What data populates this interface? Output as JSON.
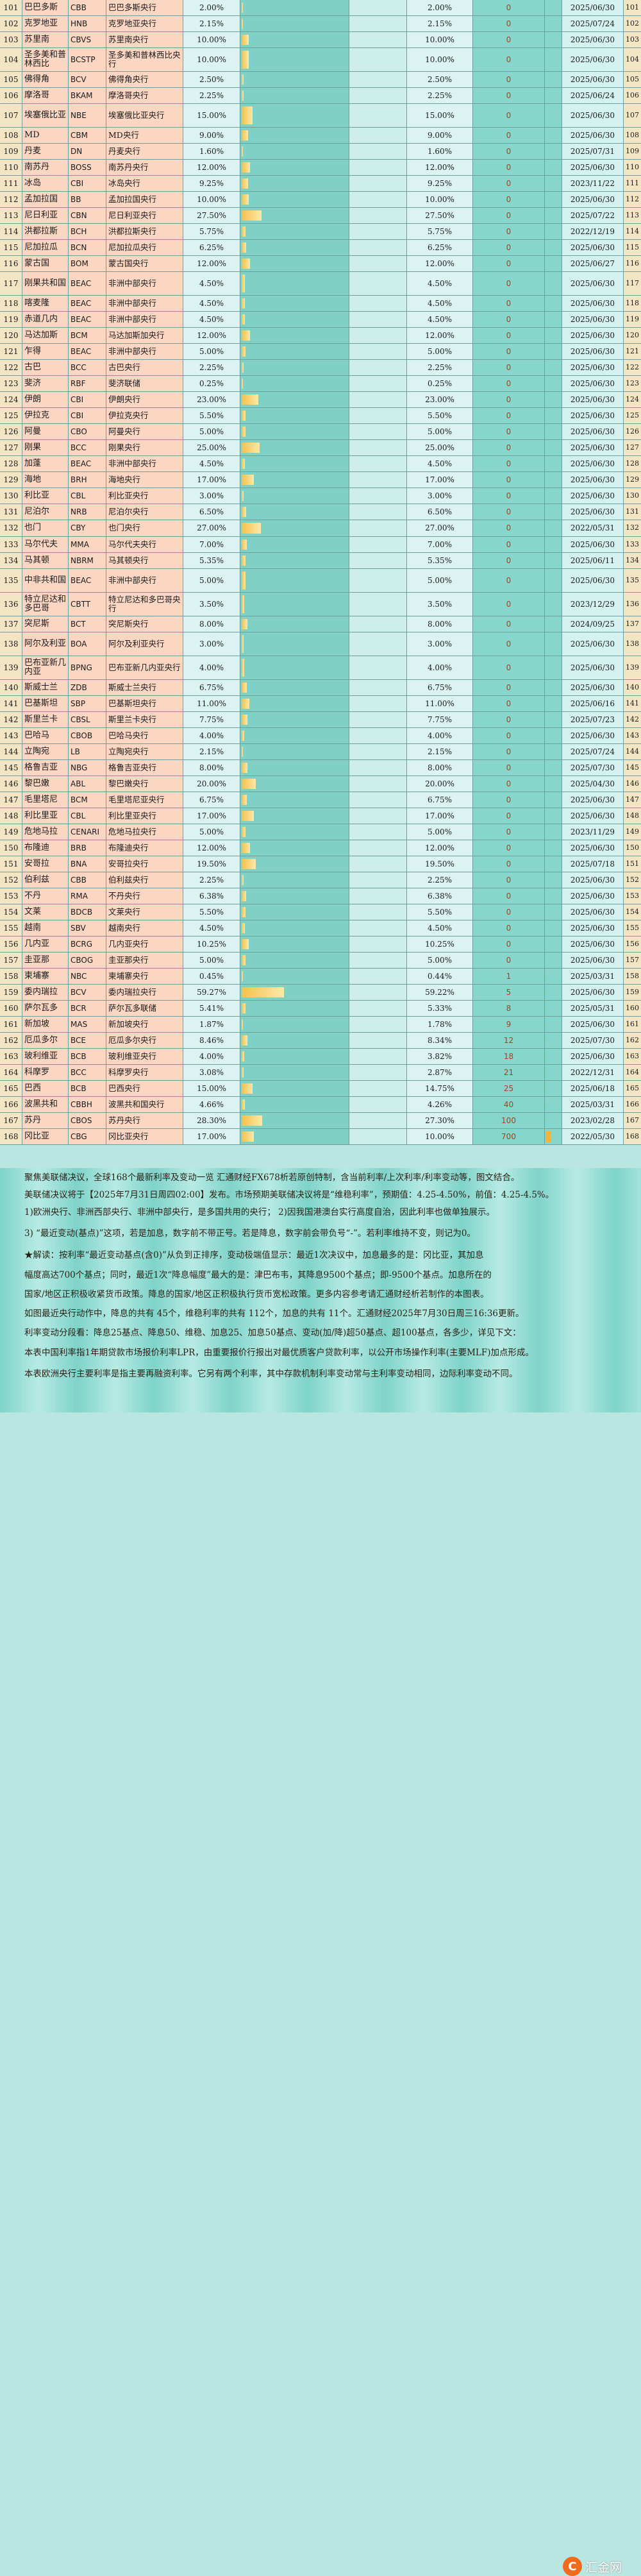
{
  "rows": [
    {
      "idx": "101",
      "country": "巴巴多斯",
      "code": "CBB",
      "bank": "巴巴多斯央行",
      "rate": "2.00%",
      "prev": "2.00%",
      "change": "0",
      "date": "2025/06/30",
      "rate_value": 2.0,
      "change_value": 0
    },
    {
      "idx": "102",
      "country": "克罗地亚",
      "code": "HNB",
      "bank": "克罗地亚央行",
      "rate": "2.15%",
      "prev": "2.15%",
      "change": "0",
      "date": "2025/07/24",
      "rate_value": 2.15,
      "change_value": 0
    },
    {
      "idx": "103",
      "country": "苏里南",
      "code": "CBVS",
      "bank": "苏里南央行",
      "rate": "10.00%",
      "prev": "10.00%",
      "change": "0",
      "date": "2025/06/30",
      "rate_value": 10.0,
      "change_value": 0
    },
    {
      "idx": "104",
      "country": "圣多美和普林西比",
      "code": "BCSTP",
      "bank": "圣多美和普林西比央行",
      "rate": "10.00%",
      "prev": "10.00%",
      "change": "0",
      "date": "2025/06/30",
      "rate_value": 10.0,
      "change_value": 0,
      "tall": true
    },
    {
      "idx": "105",
      "country": "佛得角",
      "code": "BCV",
      "bank": "佛得角央行",
      "rate": "2.50%",
      "prev": "2.50%",
      "change": "0",
      "date": "2025/06/30",
      "rate_value": 2.5,
      "change_value": 0
    },
    {
      "idx": "106",
      "country": "摩洛哥",
      "code": "BKAM",
      "bank": "摩洛哥央行",
      "rate": "2.25%",
      "prev": "2.25%",
      "change": "0",
      "date": "2025/06/24",
      "rate_value": 2.25,
      "change_value": 0
    },
    {
      "idx": "107",
      "country": "埃塞俄比亚",
      "code": "NBE",
      "bank": "埃塞俄比亚央行",
      "rate": "15.00%",
      "prev": "15.00%",
      "change": "0",
      "date": "2025/06/30",
      "rate_value": 15.0,
      "change_value": 0,
      "tall": true
    },
    {
      "idx": "108",
      "country": "MD",
      "code": "CBM",
      "bank": "MD央行",
      "rate": "9.00%",
      "prev": "9.00%",
      "change": "0",
      "date": "2025/06/30",
      "rate_value": 9.0,
      "change_value": 0
    },
    {
      "idx": "109",
      "country": "丹麦",
      "code": "DN",
      "bank": "丹麦央行",
      "rate": "1.60%",
      "prev": "1.60%",
      "change": "0",
      "date": "2025/07/31",
      "rate_value": 1.6,
      "change_value": 0
    },
    {
      "idx": "110",
      "country": "南苏丹",
      "code": "BOSS",
      "bank": "南苏丹央行",
      "rate": "12.00%",
      "prev": "12.00%",
      "change": "0",
      "date": "2025/06/30",
      "rate_value": 12.0,
      "change_value": 0
    },
    {
      "idx": "111",
      "country": "冰岛",
      "code": "CBI",
      "bank": "冰岛央行",
      "rate": "9.25%",
      "prev": "9.25%",
      "change": "0",
      "date": "2023/11/22",
      "rate_value": 9.25,
      "change_value": 0
    },
    {
      "idx": "112",
      "country": "孟加拉国",
      "code": "BB",
      "bank": "孟加拉国央行",
      "rate": "10.00%",
      "prev": "10.00%",
      "change": "0",
      "date": "2025/06/30",
      "rate_value": 10.0,
      "change_value": 0
    },
    {
      "idx": "113",
      "country": "尼日利亚",
      "code": "CBN",
      "bank": "尼日利亚央行",
      "rate": "27.50%",
      "prev": "27.50%",
      "change": "0",
      "date": "2025/07/22",
      "rate_value": 27.5,
      "change_value": 0
    },
    {
      "idx": "114",
      "country": "洪都拉斯",
      "code": "BCH",
      "bank": "洪都拉斯央行",
      "rate": "5.75%",
      "prev": "5.75%",
      "change": "0",
      "date": "2022/12/19",
      "rate_value": 5.75,
      "change_value": 0
    },
    {
      "idx": "115",
      "country": "尼加拉瓜",
      "code": "BCN",
      "bank": "尼加拉瓜央行",
      "rate": "6.25%",
      "prev": "6.25%",
      "change": "0",
      "date": "2025/06/30",
      "rate_value": 6.25,
      "change_value": 0
    },
    {
      "idx": "116",
      "country": "蒙古国",
      "code": "BOM",
      "bank": "蒙古国央行",
      "rate": "12.00%",
      "prev": "12.00%",
      "change": "0",
      "date": "2025/06/27",
      "rate_value": 12.0,
      "change_value": 0
    },
    {
      "idx": "117",
      "country": "刚果共和国",
      "code": "BEAC",
      "bank": "非洲中部央行",
      "rate": "4.50%",
      "prev": "4.50%",
      "change": "0",
      "date": "2025/06/30",
      "rate_value": 4.5,
      "change_value": 0,
      "tall": true
    },
    {
      "idx": "118",
      "country": "喀麦隆",
      "code": "BEAC",
      "bank": "非洲中部央行",
      "rate": "4.50%",
      "prev": "4.50%",
      "change": "0",
      "date": "2025/06/30",
      "rate_value": 4.5,
      "change_value": 0
    },
    {
      "idx": "119",
      "country": "赤道几内",
      "code": "BEAC",
      "bank": "非洲中部央行",
      "rate": "4.50%",
      "prev": "4.50%",
      "change": "0",
      "date": "2025/06/30",
      "rate_value": 4.5,
      "change_value": 0
    },
    {
      "idx": "120",
      "country": "马达加斯",
      "code": "BCM",
      "bank": "马达加斯加央行",
      "rate": "12.00%",
      "prev": "12.00%",
      "change": "0",
      "date": "2025/06/30",
      "rate_value": 12.0,
      "change_value": 0
    },
    {
      "idx": "121",
      "country": "乍得",
      "code": "BEAC",
      "bank": "非洲中部央行",
      "rate": "5.00%",
      "prev": "5.00%",
      "change": "0",
      "date": "2025/06/30",
      "rate_value": 5.0,
      "change_value": 0
    },
    {
      "idx": "122",
      "country": "古巴",
      "code": "BCC",
      "bank": "古巴央行",
      "rate": "2.25%",
      "prev": "2.25%",
      "change": "0",
      "date": "2025/06/30",
      "rate_value": 2.25,
      "change_value": 0
    },
    {
      "idx": "123",
      "country": "斐济",
      "code": "RBF",
      "bank": "斐济联储",
      "rate": "0.25%",
      "prev": "0.25%",
      "change": "0",
      "date": "2025/06/30",
      "rate_value": 0.25,
      "change_value": 0
    },
    {
      "idx": "124",
      "country": "伊朗",
      "code": "CBI",
      "bank": "伊朗央行",
      "rate": "23.00%",
      "prev": "23.00%",
      "change": "0",
      "date": "2025/06/30",
      "rate_value": 23.0,
      "change_value": 0
    },
    {
      "idx": "125",
      "country": "伊拉克",
      "code": "CBI",
      "bank": "伊拉克央行",
      "rate": "5.50%",
      "prev": "5.50%",
      "change": "0",
      "date": "2025/06/30",
      "rate_value": 5.5,
      "change_value": 0
    },
    {
      "idx": "126",
      "country": "阿曼",
      "code": "CBO",
      "bank": "阿曼央行",
      "rate": "5.00%",
      "prev": "5.00%",
      "change": "0",
      "date": "2025/06/30",
      "rate_value": 5.0,
      "change_value": 0
    },
    {
      "idx": "127",
      "country": "刚果",
      "code": "BCC",
      "bank": "刚果央行",
      "rate": "25.00%",
      "prev": "25.00%",
      "change": "0",
      "date": "2025/06/30",
      "rate_value": 25.0,
      "change_value": 0
    },
    {
      "idx": "128",
      "country": "加蓬",
      "code": "BEAC",
      "bank": "非洲中部央行",
      "rate": "4.50%",
      "prev": "4.50%",
      "change": "0",
      "date": "2025/06/30",
      "rate_value": 4.5,
      "change_value": 0
    },
    {
      "idx": "129",
      "country": "海地",
      "code": "BRH",
      "bank": "海地央行",
      "rate": "17.00%",
      "prev": "17.00%",
      "change": "0",
      "date": "2025/06/30",
      "rate_value": 17.0,
      "change_value": 0
    },
    {
      "idx": "130",
      "country": "利比亚",
      "code": "CBL",
      "bank": "利比亚央行",
      "rate": "3.00%",
      "prev": "3.00%",
      "change": "0",
      "date": "2025/06/30",
      "rate_value": 3.0,
      "change_value": 0
    },
    {
      "idx": "131",
      "country": "尼泊尔",
      "code": "NRB",
      "bank": "尼泊尔央行",
      "rate": "6.50%",
      "prev": "6.50%",
      "change": "0",
      "date": "2025/06/30",
      "rate_value": 6.5,
      "change_value": 0
    },
    {
      "idx": "132",
      "country": "也门",
      "code": "CBY",
      "bank": "也门央行",
      "rate": "27.00%",
      "prev": "27.00%",
      "change": "0",
      "date": "2022/05/31",
      "rate_value": 27.0,
      "change_value": 0
    },
    {
      "idx": "133",
      "country": "马尔代夫",
      "code": "MMA",
      "bank": "马尔代夫央行",
      "rate": "7.00%",
      "prev": "7.00%",
      "change": "0",
      "date": "2025/06/30",
      "rate_value": 7.0,
      "change_value": 0
    },
    {
      "idx": "134",
      "country": "马其顿",
      "code": "NBRM",
      "bank": "马其顿央行",
      "rate": "5.35%",
      "prev": "5.35%",
      "change": "0",
      "date": "2025/06/11",
      "rate_value": 5.35,
      "change_value": 0
    },
    {
      "idx": "135",
      "country": "中非共和国",
      "code": "BEAC",
      "bank": "非洲中部央行",
      "rate": "5.00%",
      "prev": "5.00%",
      "change": "0",
      "date": "2025/06/30",
      "rate_value": 5.0,
      "change_value": 0,
      "tall": true
    },
    {
      "idx": "136",
      "country": "特立尼达和多巴哥",
      "code": "CBTT",
      "bank": "特立尼达和多巴哥央行",
      "rate": "3.50%",
      "prev": "3.50%",
      "change": "0",
      "date": "2023/12/29",
      "rate_value": 3.5,
      "change_value": 0,
      "tall": true
    },
    {
      "idx": "137",
      "country": "突尼斯",
      "code": "BCT",
      "bank": "突尼斯央行",
      "rate": "8.00%",
      "prev": "8.00%",
      "change": "0",
      "date": "2024/09/25",
      "rate_value": 8.0,
      "change_value": 0
    },
    {
      "idx": "138",
      "country": "阿尔及利亚",
      "code": "BOA",
      "bank": "阿尔及利亚央行",
      "rate": "3.00%",
      "prev": "3.00%",
      "change": "0",
      "date": "2025/06/30",
      "rate_value": 3.0,
      "change_value": 0,
      "tall": true
    },
    {
      "idx": "139",
      "country": "巴布亚新几内亚",
      "code": "BPNG",
      "bank": "巴布亚新几内亚央行",
      "rate": "4.00%",
      "prev": "4.00%",
      "change": "0",
      "date": "2025/06/30",
      "rate_value": 4.0,
      "change_value": 0,
      "tall": true
    },
    {
      "idx": "140",
      "country": "斯威士兰",
      "code": "ZDB",
      "bank": "斯威士兰央行",
      "rate": "6.75%",
      "prev": "6.75%",
      "change": "0",
      "date": "2025/06/30",
      "rate_value": 6.75,
      "change_value": 0
    },
    {
      "idx": "141",
      "country": "巴基斯坦",
      "code": "SBP",
      "bank": "巴基斯坦央行",
      "rate": "11.00%",
      "prev": "11.00%",
      "change": "0",
      "date": "2025/06/16",
      "rate_value": 11.0,
      "change_value": 0
    },
    {
      "idx": "142",
      "country": "斯里兰卡",
      "code": "CBSL",
      "bank": "斯里兰卡央行",
      "rate": "7.75%",
      "prev": "7.75%",
      "change": "0",
      "date": "2025/07/23",
      "rate_value": 7.75,
      "change_value": 0
    },
    {
      "idx": "143",
      "country": "巴哈马",
      "code": "CBOB",
      "bank": "巴哈马央行",
      "rate": "4.00%",
      "prev": "4.00%",
      "change": "0",
      "date": "2025/06/30",
      "rate_value": 4.0,
      "change_value": 0
    },
    {
      "idx": "144",
      "country": "立陶宛",
      "code": "LB",
      "bank": "立陶宛央行",
      "rate": "2.15%",
      "prev": "2.15%",
      "change": "0",
      "date": "2025/07/24",
      "rate_value": 2.15,
      "change_value": 0
    },
    {
      "idx": "145",
      "country": "格鲁吉亚",
      "code": "NBG",
      "bank": "格鲁吉亚央行",
      "rate": "8.00%",
      "prev": "8.00%",
      "change": "0",
      "date": "2025/07/30",
      "rate_value": 8.0,
      "change_value": 0
    },
    {
      "idx": "146",
      "country": "黎巴嫩",
      "code": "ABL",
      "bank": "黎巴嫩央行",
      "rate": "20.00%",
      "prev": "20.00%",
      "change": "0",
      "date": "2025/04/30",
      "rate_value": 20.0,
      "change_value": 0
    },
    {
      "idx": "147",
      "country": "毛里塔尼",
      "code": "BCM",
      "bank": "毛里塔尼亚央行",
      "rate": "6.75%",
      "prev": "6.75%",
      "change": "0",
      "date": "2025/06/30",
      "rate_value": 6.75,
      "change_value": 0
    },
    {
      "idx": "148",
      "country": "利比里亚",
      "code": "CBL",
      "bank": "利比里亚央行",
      "rate": "17.00%",
      "prev": "17.00%",
      "change": "0",
      "date": "2025/06/30",
      "rate_value": 17.0,
      "change_value": 0
    },
    {
      "idx": "149",
      "country": "危地马拉",
      "code": "CENARI",
      "bank": "危地马拉央行",
      "rate": "5.00%",
      "prev": "5.00%",
      "change": "0",
      "date": "2023/11/29",
      "rate_value": 5.0,
      "change_value": 0
    },
    {
      "idx": "150",
      "country": "布隆迪",
      "code": "BRB",
      "bank": "布隆迪央行",
      "rate": "12.00%",
      "prev": "12.00%",
      "change": "0",
      "date": "2025/06/30",
      "rate_value": 12.0,
      "change_value": 0
    },
    {
      "idx": "151",
      "country": "安哥拉",
      "code": "BNA",
      "bank": "安哥拉央行",
      "rate": "19.50%",
      "prev": "19.50%",
      "change": "0",
      "date": "2025/07/18",
      "rate_value": 19.5,
      "change_value": 0
    },
    {
      "idx": "152",
      "country": "伯利兹",
      "code": "CBB",
      "bank": "伯利兹央行",
      "rate": "2.25%",
      "prev": "2.25%",
      "change": "0",
      "date": "2025/06/30",
      "rate_value": 2.25,
      "change_value": 0
    },
    {
      "idx": "153",
      "country": "不丹",
      "code": "RMA",
      "bank": "不丹央行",
      "rate": "6.38%",
      "prev": "6.38%",
      "change": "0",
      "date": "2025/06/30",
      "rate_value": 6.38,
      "change_value": 0
    },
    {
      "idx": "154",
      "country": "文莱",
      "code": "BDCB",
      "bank": "文莱央行",
      "rate": "5.50%",
      "prev": "5.50%",
      "change": "0",
      "date": "2025/06/30",
      "rate_value": 5.5,
      "change_value": 0
    },
    {
      "idx": "155",
      "country": "越南",
      "code": "SBV",
      "bank": "越南央行",
      "rate": "4.50%",
      "prev": "4.50%",
      "change": "0",
      "date": "2025/06/30",
      "rate_value": 4.5,
      "change_value": 0
    },
    {
      "idx": "156",
      "country": "几内亚",
      "code": "BCRG",
      "bank": "几内亚央行",
      "rate": "10.25%",
      "prev": "10.25%",
      "change": "0",
      "date": "2025/06/30",
      "rate_value": 10.25,
      "change_value": 0
    },
    {
      "idx": "157",
      "country": "圭亚那",
      "code": "CBOG",
      "bank": "圭亚那央行",
      "rate": "5.00%",
      "prev": "5.00%",
      "change": "0",
      "date": "2025/06/30",
      "rate_value": 5.0,
      "change_value": 0
    },
    {
      "idx": "158",
      "country": "柬埔寨",
      "code": "NBC",
      "bank": "柬埔寨央行",
      "rate": "0.45%",
      "prev": "0.44%",
      "change": "1",
      "date": "2025/03/31",
      "rate_value": 0.45,
      "change_value": 1
    },
    {
      "idx": "159",
      "country": "委内瑞拉",
      "code": "BCV",
      "bank": "委内瑞拉央行",
      "rate": "59.27%",
      "prev": "59.22%",
      "change": "5",
      "date": "2025/06/30",
      "rate_value": 59.27,
      "change_value": 5
    },
    {
      "idx": "160",
      "country": "萨尔瓦多",
      "code": "BCR",
      "bank": "萨尔瓦多联储",
      "rate": "5.41%",
      "prev": "5.33%",
      "change": "8",
      "date": "2025/05/31",
      "rate_value": 5.41,
      "change_value": 8
    },
    {
      "idx": "161",
      "country": "新加坡",
      "code": "MAS",
      "bank": "新加坡央行",
      "rate": "1.87%",
      "prev": "1.78%",
      "change": "9",
      "date": "2025/06/30",
      "rate_value": 1.87,
      "change_value": 9
    },
    {
      "idx": "162",
      "country": "厄瓜多尔",
      "code": "BCE",
      "bank": "厄瓜多尔央行",
      "rate": "8.46%",
      "prev": "8.34%",
      "change": "12",
      "date": "2025/07/30",
      "rate_value": 8.46,
      "change_value": 12
    },
    {
      "idx": "163",
      "country": "玻利维亚",
      "code": "BCB",
      "bank": "玻利维亚央行",
      "rate": "4.00%",
      "prev": "3.82%",
      "change": "18",
      "date": "2025/06/30",
      "rate_value": 4.0,
      "change_value": 18
    },
    {
      "idx": "164",
      "country": "科摩罗",
      "code": "BCC",
      "bank": "科摩罗央行",
      "rate": "3.08%",
      "prev": "2.87%",
      "change": "21",
      "date": "2022/12/31",
      "rate_value": 3.08,
      "change_value": 21
    },
    {
      "idx": "165",
      "country": "巴西",
      "code": "BCB",
      "bank": "巴西央行",
      "rate": "15.00%",
      "prev": "14.75%",
      "change": "25",
      "date": "2025/06/18",
      "rate_value": 15.0,
      "change_value": 25
    },
    {
      "idx": "166",
      "country": "波黑共和",
      "code": "CBBH",
      "bank": "波黑共和国央行",
      "rate": "4.66%",
      "prev": "4.26%",
      "change": "40",
      "date": "2025/03/31",
      "rate_value": 4.66,
      "change_value": 40
    },
    {
      "idx": "167",
      "country": "苏丹",
      "code": "CBOS",
      "bank": "苏丹央行",
      "rate": "28.30%",
      "prev": "27.30%",
      "change": "100",
      "date": "2023/02/28",
      "rate_value": 28.3,
      "change_value": 100
    },
    {
      "idx": "168",
      "country": "冈比亚",
      "code": "CBG",
      "bank": "冈比亚央行",
      "rate": "17.00%",
      "prev": "10.00%",
      "change": "700",
      "date": "2022/05/30",
      "rate_value": 17.0,
      "change_value": 700
    }
  ],
  "notes": [
    "聚焦美联储决议，全球168个最新利率及变动一览 汇通财经FX678析若原创特制，含当前利率/上次利率/利率变动等，图文结合。",
    "美联储决议将于【2025年7月31日周四02:00】发布。市场预期美联储决议将是“维稳利率”，预期值：4.25-4.50%，前值：4.25-4.5%。",
    "1)欧洲央行、非洲西部央行、非洲中部央行，是多国共用的央行；  2)因我国港澳台实行高度自治，因此利率也做单独展示。",
    "3) “最近变动(基点)”这项，若是加息，数字前不带正号。若是降息，数字前会带负号“-”。若利率维持不变，则记为0。",
    "★解读：按利率“最近变动基点(含0)”从负到正排序，变动极端值显示：最近1次决议中，加息最多的是：冈比亚，其加息",
    "幅度高达700个基点；同时，最近1次“降息幅度”最大的是：津巴布韦，其降息9500个基点；即-9500个基点。加息所在的",
    "国家/地区正积极收紧货币政策。降息的国家/地区正积极执行货币宽松政策。更多内容参考请汇通财经析若制作的本图表。",
    "如图最近央行动作中，降息的共有 45个，维稳利率的共有 112个，加息的共有 11个。汇通财经2025年7月30日周三16:36更新。",
    "利率变动分段看：降息25基点、降息50、维稳、加息25、加息50基点、变动(加/降)超50基点、超100基点，各多少，详见下文：",
    "本表中国利率指1年期贷款市场报价利率LPR，由重要报价行报出对最优质客户贷款利率，以公开市场操作利率(主要MLF)加点形成。",
    "本表欧洲央行主要利率是指主要再融资利率。它另有两个利率，其中存款机制利率变动常与主利率变动相同，边际利率变动不同。"
  ],
  "logo": {
    "text": "汇金网",
    "mark": "C"
  },
  "colors": {
    "bar": "#f7c04a",
    "change_text": "#b43a17",
    "teal": "#7fd1c6",
    "peach": "#fbd6c3"
  }
}
